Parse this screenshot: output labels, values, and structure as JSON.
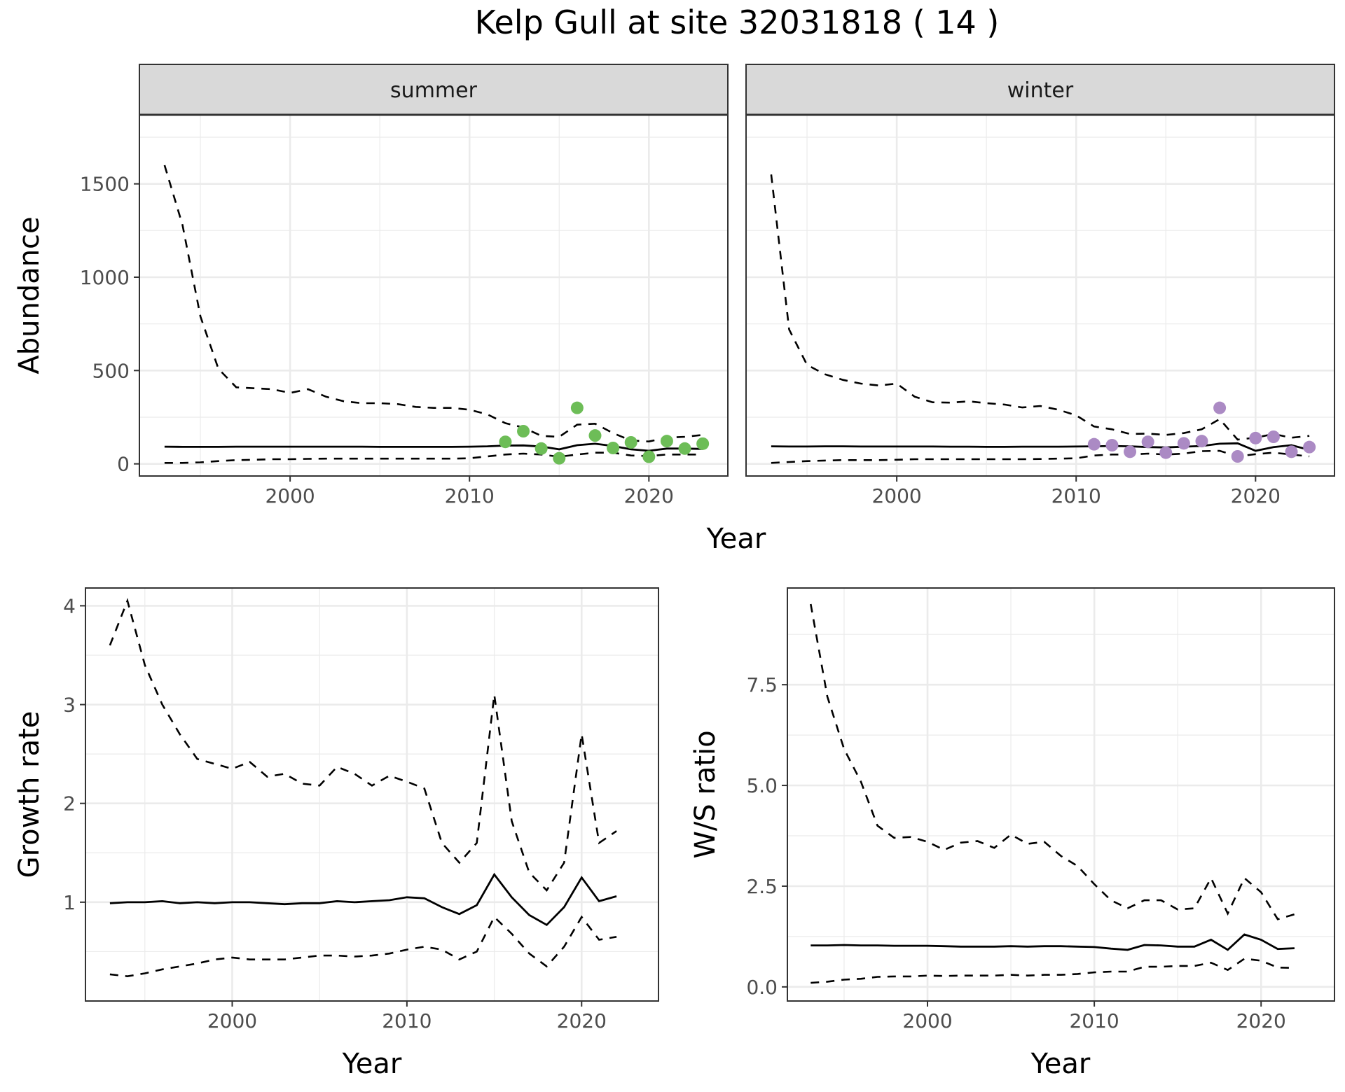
{
  "title": "Kelp Gull at site 32031818 ( 14 )",
  "colors": {
    "summer_points": "#6dbd57",
    "winter_points": "#ab8ac4",
    "line": "#000000",
    "panel_border": "#333333",
    "grid": "#ebebeb",
    "strip_fill": "#d9d9d9"
  },
  "chart_data": [
    {
      "id": "abundance",
      "type": "line",
      "facets": [
        "summer",
        "winter"
      ],
      "xlabel": "Year",
      "ylabel": "Abundance",
      "xlim": [
        1991.6,
        2024.4
      ],
      "ylim": [
        -65,
        1870
      ],
      "xticks": [
        2000,
        2010,
        2020
      ],
      "yticks": [
        0,
        500,
        1000,
        1500
      ],
      "ytick_labels": [
        "0",
        "500",
        "1000",
        "1500"
      ],
      "grid": true,
      "x": [
        1993,
        1994,
        1995,
        1996,
        1997,
        1998,
        1999,
        2000,
        2001,
        2002,
        2003,
        2004,
        2005,
        2006,
        2007,
        2008,
        2009,
        2010,
        2011,
        2012,
        2013,
        2014,
        2015,
        2016,
        2017,
        2018,
        2019,
        2020,
        2021,
        2022,
        2023
      ],
      "panels": [
        {
          "strip": "summer",
          "estimate": [
            92,
            91,
            91,
            91,
            92,
            92,
            92,
            92,
            92,
            92,
            92,
            92,
            91,
            91,
            91,
            91,
            91,
            92,
            94,
            98,
            99,
            93,
            78,
            100,
            108,
            96,
            78,
            70,
            82,
            82,
            80
          ],
          "upper": [
            1600,
            1280,
            790,
            510,
            410,
            405,
            400,
            380,
            400,
            360,
            335,
            325,
            325,
            320,
            305,
            300,
            300,
            290,
            265,
            218,
            195,
            150,
            145,
            210,
            215,
            165,
            125,
            120,
            140,
            145,
            155
          ],
          "lower": [
            5,
            5,
            8,
            15,
            20,
            22,
            25,
            25,
            27,
            28,
            28,
            28,
            28,
            28,
            28,
            28,
            28,
            30,
            40,
            50,
            55,
            50,
            38,
            50,
            60,
            60,
            45,
            42,
            50,
            50,
            50
          ],
          "obs_x": [
            2012,
            2013,
            2014,
            2015,
            2016,
            2017,
            2018,
            2019,
            2020,
            2021,
            2022,
            2023
          ],
          "obs_y": [
            118,
            175,
            82,
            30,
            300,
            152,
            85,
            115,
            38,
            122,
            82,
            108
          ]
        },
        {
          "strip": "winter",
          "estimate": [
            94,
            93,
            93,
            94,
            94,
            93,
            93,
            93,
            93,
            93,
            92,
            92,
            91,
            91,
            92,
            92,
            92,
            93,
            94,
            96,
            94,
            90,
            88,
            92,
            96,
            108,
            110,
            70,
            90,
            100,
            75
          ],
          "upper": [
            1550,
            720,
            530,
            480,
            450,
            430,
            420,
            430,
            360,
            330,
            328,
            335,
            325,
            318,
            302,
            310,
            290,
            260,
            200,
            185,
            160,
            162,
            155,
            165,
            185,
            240,
            130,
            140,
            160,
            140,
            150
          ],
          "lower": [
            5,
            10,
            15,
            18,
            20,
            20,
            20,
            22,
            25,
            25,
            25,
            25,
            25,
            25,
            25,
            26,
            28,
            30,
            45,
            50,
            50,
            55,
            50,
            55,
            68,
            70,
            40,
            52,
            60,
            50,
            40
          ],
          "obs_x": [
            2011,
            2012,
            2013,
            2014,
            2015,
            2016,
            2017,
            2018,
            2019,
            2020,
            2021,
            2022,
            2023
          ],
          "obs_y": [
            105,
            100,
            65,
            118,
            60,
            110,
            122,
            300,
            40,
            138,
            145,
            65,
            90
          ]
        }
      ]
    },
    {
      "id": "growth",
      "type": "line",
      "xlabel": "Year",
      "ylabel": "Growth rate",
      "xlim": [
        1991.6,
        2024.4
      ],
      "ylim": [
        0,
        4.18
      ],
      "xticks": [
        2000,
        2010,
        2020
      ],
      "yticks": [
        1,
        2,
        3,
        4
      ],
      "ytick_labels": [
        "1",
        "2",
        "3",
        "4"
      ],
      "grid": true,
      "x": [
        1993,
        1994,
        1995,
        1996,
        1997,
        1998,
        1999,
        2000,
        2001,
        2002,
        2003,
        2004,
        2005,
        2006,
        2007,
        2008,
        2009,
        2010,
        2011,
        2012,
        2013,
        2014,
        2015,
        2016,
        2017,
        2018,
        2019,
        2020,
        2021,
        2022
      ],
      "estimate": [
        0.99,
        1.0,
        1.0,
        1.01,
        0.99,
        1.0,
        0.99,
        1.0,
        1.0,
        0.99,
        0.98,
        0.99,
        0.99,
        1.01,
        1.0,
        1.01,
        1.02,
        1.05,
        1.04,
        0.95,
        0.88,
        0.97,
        1.28,
        1.05,
        0.87,
        0.77,
        0.95,
        1.25,
        1.01,
        1.06
      ],
      "upper": [
        3.6,
        4.05,
        3.4,
        3.0,
        2.7,
        2.45,
        2.4,
        2.35,
        2.42,
        2.27,
        2.3,
        2.2,
        2.18,
        2.37,
        2.3,
        2.18,
        2.28,
        2.22,
        2.15,
        1.6,
        1.4,
        1.6,
        3.1,
        1.82,
        1.3,
        1.12,
        1.4,
        2.7,
        1.6,
        1.72
      ],
      "lower": [
        0.27,
        0.25,
        0.28,
        0.32,
        0.35,
        0.38,
        0.42,
        0.44,
        0.42,
        0.42,
        0.42,
        0.44,
        0.46,
        0.46,
        0.45,
        0.46,
        0.48,
        0.52,
        0.55,
        0.52,
        0.42,
        0.5,
        0.85,
        0.68,
        0.48,
        0.35,
        0.55,
        0.85,
        0.62,
        0.65
      ]
    },
    {
      "id": "ws_ratio",
      "type": "line",
      "xlabel": "Year",
      "ylabel": "W/S ratio",
      "xlim": [
        1991.6,
        2024.4
      ],
      "ylim": [
        -0.35,
        9.9
      ],
      "xticks": [
        2000,
        2010,
        2020
      ],
      "yticks": [
        0,
        2.5,
        5,
        7.5
      ],
      "ytick_labels": [
        "0.0",
        "2.5",
        "5.0",
        "7.5"
      ],
      "grid": true,
      "x": [
        1993,
        1994,
        1995,
        1996,
        1997,
        1998,
        1999,
        2000,
        2001,
        2002,
        2003,
        2004,
        2005,
        2006,
        2007,
        2008,
        2009,
        2010,
        2011,
        2012,
        2013,
        2014,
        2015,
        2016,
        2017,
        2018,
        2019,
        2020,
        2021,
        2022
      ],
      "estimate": [
        1.03,
        1.03,
        1.04,
        1.03,
        1.03,
        1.02,
        1.02,
        1.02,
        1.01,
        1.0,
        1.0,
        1.0,
        1.01,
        1.0,
        1.01,
        1.01,
        1.0,
        0.99,
        0.95,
        0.92,
        1.04,
        1.03,
        1.0,
        1.0,
        1.17,
        0.92,
        1.3,
        1.17,
        0.94,
        0.96
      ],
      "upper": [
        9.5,
        7.2,
        5.9,
        5.1,
        4.0,
        3.7,
        3.72,
        3.6,
        3.4,
        3.58,
        3.62,
        3.45,
        3.78,
        3.55,
        3.6,
        3.25,
        3.0,
        2.55,
        2.15,
        1.95,
        2.15,
        2.15,
        1.92,
        1.95,
        2.7,
        1.82,
        2.7,
        2.35,
        1.68,
        1.8
      ],
      "lower": [
        0.1,
        0.13,
        0.18,
        0.2,
        0.25,
        0.26,
        0.26,
        0.28,
        0.27,
        0.28,
        0.28,
        0.28,
        0.3,
        0.28,
        0.3,
        0.3,
        0.32,
        0.36,
        0.38,
        0.38,
        0.5,
        0.5,
        0.52,
        0.52,
        0.6,
        0.42,
        0.7,
        0.65,
        0.48,
        0.47
      ]
    }
  ]
}
